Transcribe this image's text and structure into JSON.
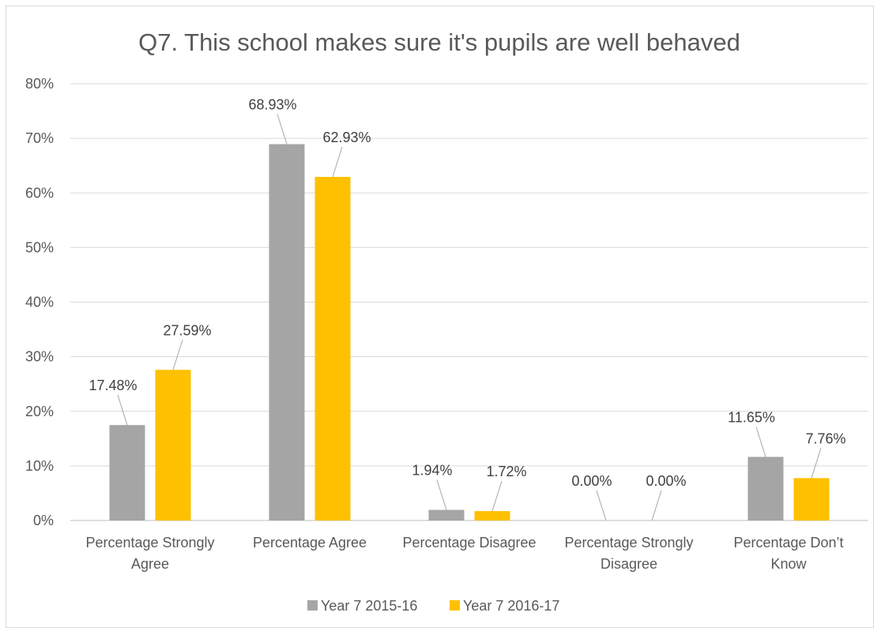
{
  "chart_data": {
    "type": "bar",
    "title": "Q7. This school makes sure it's pupils are well behaved",
    "categories": [
      [
        "Percentage Strongly",
        "Agree"
      ],
      [
        "Percentage Agree"
      ],
      [
        "Percentage Disagree"
      ],
      [
        "Percentage Strongly",
        "Disagree"
      ],
      [
        "Percentage Don’t",
        "Know"
      ]
    ],
    "series": [
      {
        "name": "Year 7 2015-16",
        "color": "#a5a5a5",
        "values": [
          17.48,
          68.93,
          1.94,
          0.0,
          11.65
        ],
        "labels": [
          "17.48%",
          "68.93%",
          "1.94%",
          "0.00%",
          "11.65%"
        ]
      },
      {
        "name": "Year 7 2016-17",
        "color": "#ffc000",
        "values": [
          27.59,
          62.93,
          1.72,
          0.0,
          7.76
        ],
        "labels": [
          "27.59%",
          "62.93%",
          "1.72%",
          "0.00%",
          "7.76%"
        ]
      }
    ],
    "ylim": [
      0,
      80
    ],
    "yticks": [
      0,
      10,
      20,
      30,
      40,
      50,
      60,
      70,
      80
    ],
    "ytick_labels": [
      "0%",
      "10%",
      "20%",
      "30%",
      "40%",
      "50%",
      "60%",
      "70%",
      "80%"
    ],
    "grid": true,
    "legend": "bottom",
    "colors": {
      "grid": "#d9d9d9",
      "axis": "#bfbfbf",
      "text": "#595959",
      "leader": "#a6a6a6"
    }
  }
}
